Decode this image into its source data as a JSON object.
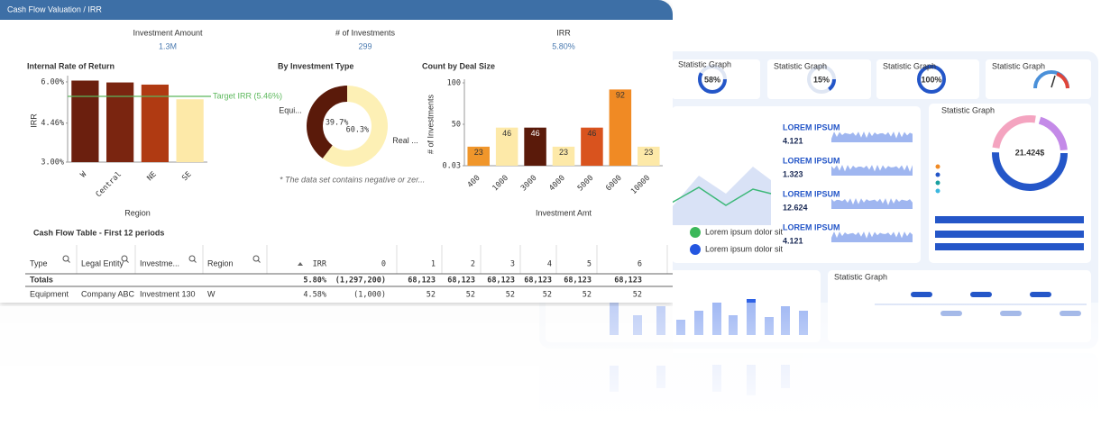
{
  "header": {
    "title": "Cash Flow Valuation / IRR"
  },
  "kpis": [
    {
      "label": "Investment Amount",
      "value": "1.3M"
    },
    {
      "label": "# of Investments",
      "value": "299"
    },
    {
      "label": "IRR",
      "value": "5.80%"
    }
  ],
  "chart_data": [
    {
      "type": "bar",
      "title": "Internal Rate of Return",
      "x_label": "Region",
      "y_label": "IRR",
      "categories": [
        "W",
        "Central",
        "NE",
        "SE"
      ],
      "values": [
        6.05,
        5.98,
        5.9,
        5.35
      ],
      "colors": [
        "#6b1f0e",
        "#7a2510",
        "#b03a12",
        "#fde9a8"
      ],
      "ylim": [
        3,
        6.1
      ],
      "yticks": [
        {
          "value": 3,
          "label": "3.00%"
        },
        {
          "value": 4.46,
          "label": "4.46%"
        },
        {
          "value": 6,
          "label": "6.00%"
        }
      ],
      "target": {
        "value": 5.46,
        "label": "Target IRR (5.46%)",
        "color": "#5cb85c"
      }
    },
    {
      "type": "donut",
      "title": "By Investment Type",
      "categories": [
        "Equi...",
        "Real ..."
      ],
      "values": [
        39.7,
        60.3
      ],
      "value_labels": [
        "39.7%",
        "60.3%"
      ],
      "colors": [
        "#5a1a0a",
        "#fdf0b5"
      ],
      "note": "* The data set contains negative or zer..."
    },
    {
      "type": "bar",
      "title": "Count by Deal Size",
      "x_label": "Investment Amt",
      "y_label": "# of Investments",
      "categories": [
        "400",
        "1000",
        "3000",
        "4000",
        "5000",
        "6000",
        "10000"
      ],
      "values": [
        23,
        46,
        46,
        23,
        46,
        92,
        23
      ],
      "colors": [
        "#f0962b",
        "#fde9a8",
        "#5a1a0a",
        "#fde9a8",
        "#d9531e",
        "#f08a24",
        "#fde9a8"
      ],
      "ylim": [
        0.03,
        100
      ],
      "yticks": [
        0.03,
        50,
        100
      ],
      "data_labels": true
    }
  ],
  "table": {
    "title": "Cash Flow Table - First 12 periods",
    "columns": [
      "Type",
      "Legal Entity",
      "Investme...",
      "Region",
      "IRR",
      "0",
      "1",
      "2",
      "3",
      "4",
      "5",
      "6"
    ],
    "rows": [
      [
        "Totals",
        null,
        null,
        null,
        "5.80%",
        "(1,297,200)",
        "68,123",
        "68,123",
        "68,123",
        "68,123",
        "68,123",
        "68,123"
      ],
      [
        "Equipment",
        "Company ABC",
        "Investment 130",
        "W",
        "4.58%",
        "(1,000)",
        "52",
        "52",
        "52",
        "52",
        "52",
        "52"
      ]
    ]
  },
  "background_dashboard": {
    "stat_cards": [
      {
        "title": "Statistic Graph",
        "value": "58%"
      },
      {
        "title": "Statistic Graph",
        "value": "15%"
      },
      {
        "title": "Statistic Graph",
        "value": "100%"
      },
      {
        "title": "Statistic Graph"
      }
    ],
    "metrics": [
      {
        "label": "LOREM IPSUM",
        "value": "4.121"
      },
      {
        "label": "LOREM IPSUM",
        "value": "1.323"
      },
      {
        "label": "LOREM IPSUM",
        "value": "12.624"
      },
      {
        "label": "LOREM IPSUM",
        "value": "4.121"
      }
    ],
    "legend": [
      "Lorem ipsum dolor sit",
      "Lorem ipsum dolor sit"
    ],
    "ring_card": {
      "title": "Statistic Graph",
      "value": "21.424$"
    },
    "timeline_card": {
      "title": "Statistic Graph"
    }
  }
}
